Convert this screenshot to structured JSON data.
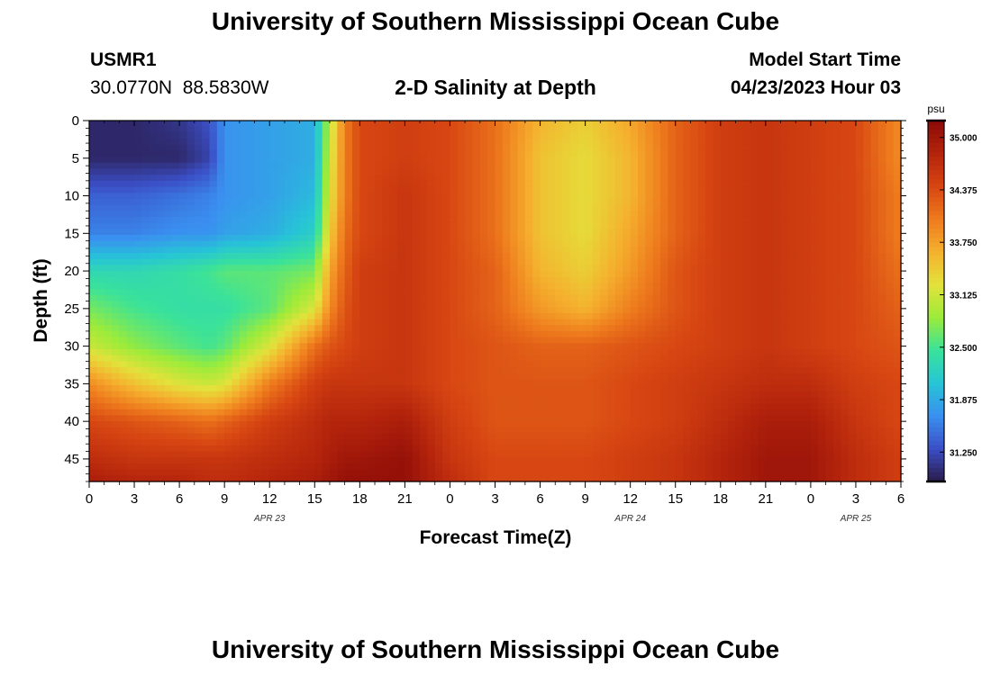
{
  "header": {
    "title": "University of Southern Mississippi Ocean Cube",
    "station_id": "USMR1",
    "coords": "30.0770N  88.5830W",
    "start_label": "Model Start Time",
    "start_value": "04/23/2023 Hour 03"
  },
  "footer": {
    "title": "University of Southern Mississippi Ocean Cube"
  },
  "chart_data": {
    "type": "heatmap",
    "title": "2-D Salinity at Depth",
    "xlabel": "Forecast Time(Z)",
    "ylabel": "Depth (ft)",
    "x_hour_range": [
      0,
      54
    ],
    "x_ticks": [
      "0",
      "3",
      "6",
      "9",
      "12",
      "15",
      "18",
      "21",
      "0",
      "3",
      "6",
      "9",
      "12",
      "15",
      "18",
      "21",
      "0",
      "3",
      "6"
    ],
    "date_labels": [
      {
        "label": "APR 23",
        "at_hour": 12
      },
      {
        "label": "APR 24",
        "at_hour": 36
      },
      {
        "label": "APR 25",
        "at_hour": 51
      }
    ],
    "y_range": [
      0,
      48
    ],
    "y_ticks": [
      0,
      5,
      10,
      15,
      20,
      25,
      30,
      35,
      40,
      45
    ],
    "colorbar": {
      "unit": "psu",
      "range": [
        30.9,
        35.2
      ],
      "ticks": [
        "35.000",
        "34.375",
        "33.750",
        "33.125",
        "32.500",
        "31.875",
        "31.250"
      ],
      "colors": [
        "#2a1b4a",
        "#3b4fc6",
        "#3a90f0",
        "#26c5d6",
        "#3ae29a",
        "#9ceb3a",
        "#e3e23b",
        "#f5b02e",
        "#ee7a1d",
        "#d64512",
        "#b4240c",
        "#8a0a07"
      ]
    },
    "salinity_grid": {
      "hours": [
        0,
        3,
        6,
        8,
        9,
        12,
        15,
        16,
        17,
        18,
        21,
        24,
        27,
        30,
        33,
        36,
        39,
        42,
        45,
        48,
        51,
        54
      ],
      "depths": [
        0,
        5,
        10,
        15,
        20,
        25,
        30,
        35,
        40,
        45,
        48
      ],
      "values": [
        [
          31.0,
          31.0,
          31.1,
          31.3,
          31.7,
          31.8,
          31.9,
          33.0,
          34.0,
          34.4,
          34.5,
          34.4,
          34.1,
          33.6,
          33.4,
          33.7,
          34.2,
          34.5,
          34.6,
          34.5,
          34.4,
          33.9
        ],
        [
          31.0,
          31.0,
          31.0,
          31.2,
          31.7,
          31.8,
          31.9,
          33.1,
          34.0,
          34.4,
          34.5,
          34.4,
          34.1,
          33.5,
          33.3,
          33.6,
          34.2,
          34.5,
          34.6,
          34.5,
          34.4,
          33.9
        ],
        [
          31.4,
          31.4,
          31.5,
          31.6,
          31.7,
          31.8,
          32.0,
          33.2,
          34.0,
          34.4,
          34.6,
          34.4,
          34.1,
          33.5,
          33.3,
          33.6,
          34.2,
          34.5,
          34.6,
          34.5,
          34.4,
          34.0
        ],
        [
          31.6,
          31.6,
          31.7,
          31.7,
          31.8,
          31.9,
          32.2,
          33.4,
          34.1,
          34.4,
          34.6,
          34.4,
          34.1,
          33.5,
          33.3,
          33.7,
          34.2,
          34.5,
          34.6,
          34.5,
          34.4,
          34.0
        ],
        [
          32.3,
          32.3,
          32.4,
          32.5,
          32.6,
          32.6,
          32.7,
          33.7,
          34.2,
          34.5,
          34.6,
          34.4,
          34.2,
          33.6,
          33.4,
          33.8,
          34.3,
          34.5,
          34.6,
          34.5,
          34.4,
          34.1
        ],
        [
          32.7,
          32.5,
          32.4,
          32.4,
          32.4,
          32.6,
          33.2,
          33.9,
          34.3,
          34.5,
          34.6,
          34.4,
          34.2,
          33.8,
          33.6,
          34.0,
          34.3,
          34.5,
          34.6,
          34.5,
          34.4,
          34.2
        ],
        [
          33.1,
          32.8,
          32.6,
          32.5,
          32.6,
          33.2,
          34.1,
          34.3,
          34.4,
          34.5,
          34.6,
          34.4,
          34.3,
          34.2,
          34.2,
          34.3,
          34.4,
          34.5,
          34.6,
          34.5,
          34.4,
          34.3
        ],
        [
          33.9,
          33.5,
          33.2,
          33.1,
          33.2,
          34.0,
          34.5,
          34.6,
          34.6,
          34.6,
          34.6,
          34.4,
          34.3,
          34.3,
          34.3,
          34.4,
          34.5,
          34.6,
          34.7,
          34.7,
          34.5,
          34.4
        ],
        [
          34.4,
          34.3,
          34.2,
          34.1,
          34.2,
          34.5,
          34.7,
          34.8,
          34.8,
          34.8,
          34.9,
          34.5,
          34.3,
          34.3,
          34.3,
          34.4,
          34.5,
          34.7,
          34.9,
          34.9,
          34.6,
          34.4
        ],
        [
          34.7,
          34.6,
          34.6,
          34.6,
          34.6,
          34.7,
          34.8,
          34.9,
          35.0,
          35.0,
          35.1,
          34.6,
          34.4,
          34.4,
          34.4,
          34.5,
          34.6,
          34.8,
          35.0,
          35.0,
          34.7,
          34.5
        ],
        [
          34.9,
          34.8,
          34.8,
          34.7,
          34.7,
          34.8,
          34.9,
          35.0,
          35.1,
          35.1,
          35.1,
          34.7,
          34.4,
          34.4,
          34.4,
          34.5,
          34.6,
          34.8,
          35.0,
          35.0,
          34.7,
          34.5
        ]
      ]
    },
    "grid": false,
    "legend": "right"
  }
}
